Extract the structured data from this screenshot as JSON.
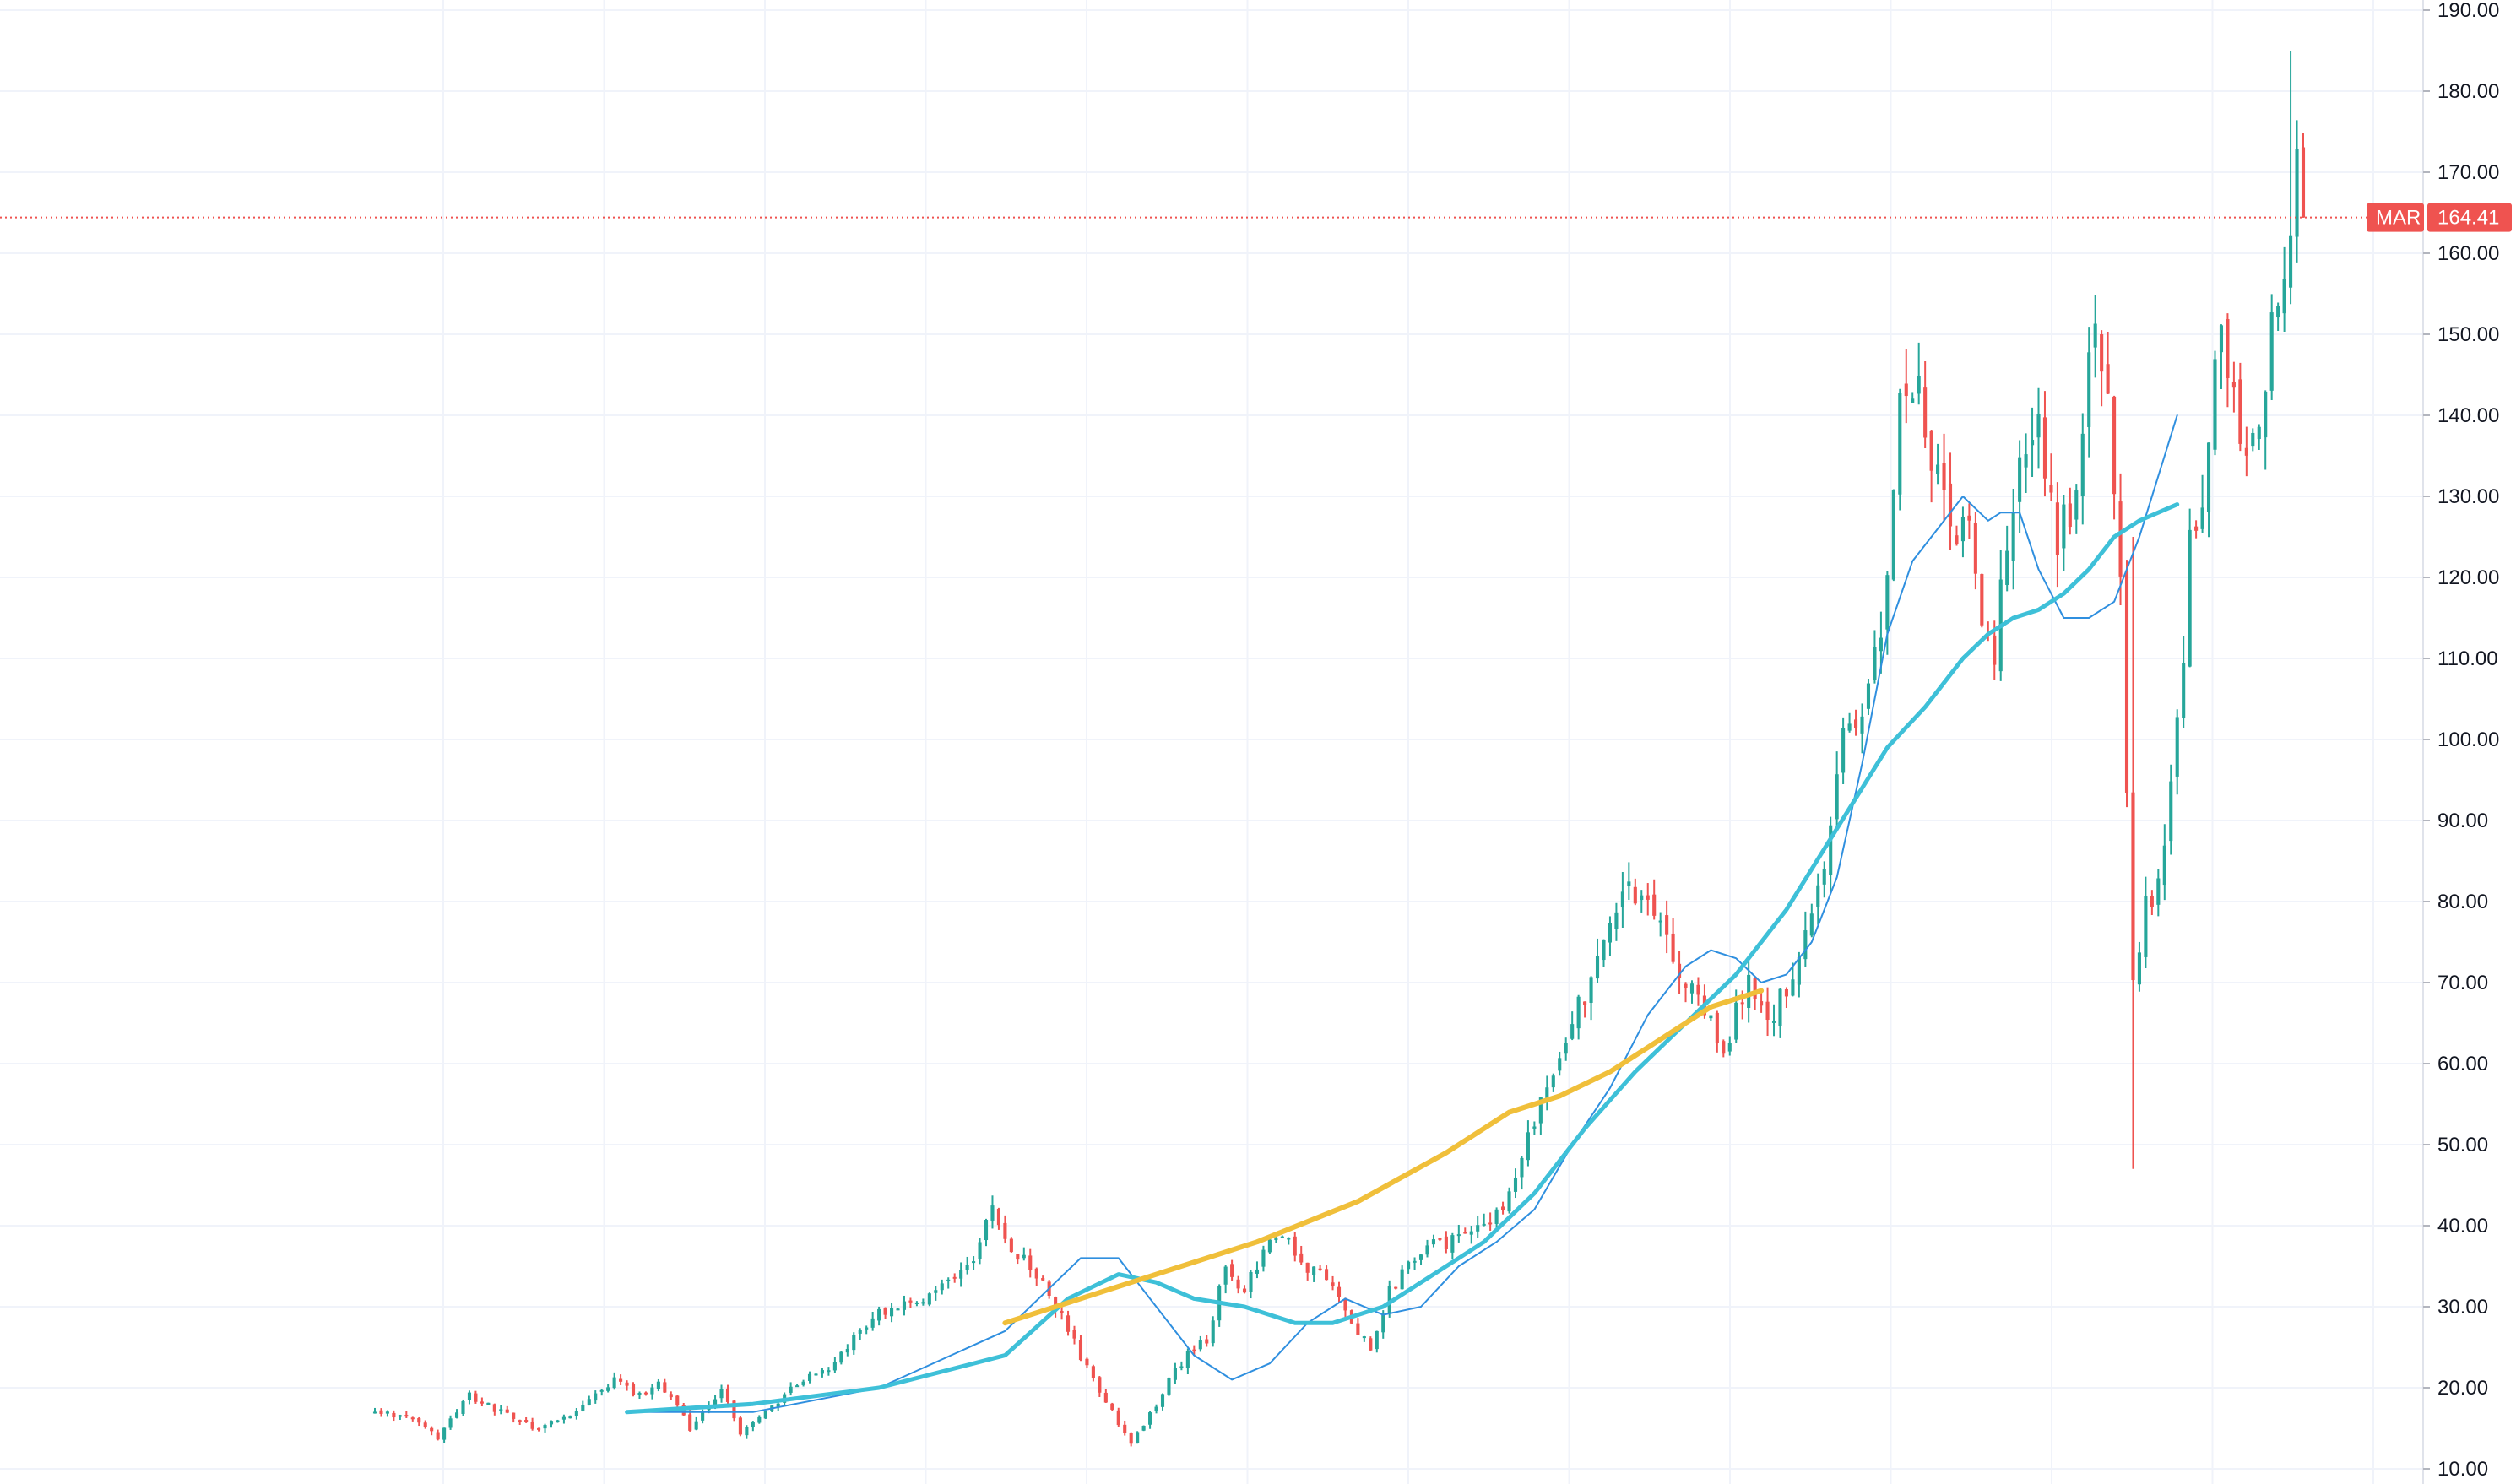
{
  "symbol_label": "MAR",
  "last_price_label": "164.41",
  "colors": {
    "up": "#26a69a",
    "down": "#ef5350",
    "ma_fast": "#2f8fdf",
    "ma_mid": "#3ec0d8",
    "ma_slow": "#f0bf3a",
    "grid": "#f0f3fa",
    "price_line": "#ef5350"
  },
  "chart_data": {
    "type": "candlestick",
    "title": "",
    "xlabel": "",
    "ylabel": "",
    "ylim": [
      10,
      190
    ],
    "y_tick_labels": [
      "10.00",
      "20.00",
      "30.00",
      "40.00",
      "50.00",
      "60.00",
      "70.00",
      "80.00",
      "90.00",
      "100.00",
      "110.00",
      "120.00",
      "130.00",
      "140.00",
      "150.00",
      "160.00",
      "170.00",
      "180.00",
      "190.00"
    ],
    "last_price": 164.41,
    "grid": true,
    "legend": "none",
    "candle_count": 250,
    "close_path": [
      [
        0,
        17
      ],
      [
        6,
        16
      ],
      [
        10,
        14
      ],
      [
        15,
        19
      ],
      [
        20,
        17
      ],
      [
        25,
        15
      ],
      [
        30,
        16
      ],
      [
        35,
        19
      ],
      [
        38,
        21
      ],
      [
        42,
        19
      ],
      [
        45,
        21
      ],
      [
        50,
        15
      ],
      [
        55,
        20
      ],
      [
        58,
        14
      ],
      [
        62,
        17
      ],
      [
        68,
        21
      ],
      [
        72,
        22
      ],
      [
        78,
        28
      ],
      [
        82,
        30
      ],
      [
        85,
        30
      ],
      [
        90,
        33
      ],
      [
        95,
        36
      ],
      [
        98,
        42
      ],
      [
        101,
        37
      ],
      [
        104,
        35
      ],
      [
        108,
        30
      ],
      [
        114,
        21
      ],
      [
        120,
        13
      ],
      [
        124,
        18
      ],
      [
        126,
        21
      ],
      [
        130,
        25
      ],
      [
        132,
        26
      ],
      [
        135,
        35
      ],
      [
        138,
        32
      ],
      [
        142,
        38
      ],
      [
        145,
        38
      ],
      [
        148,
        35
      ],
      [
        152,
        33
      ],
      [
        155,
        28
      ],
      [
        158,
        25
      ],
      [
        161,
        32
      ],
      [
        164,
        35
      ],
      [
        167,
        38
      ],
      [
        170,
        38
      ],
      [
        175,
        40
      ],
      [
        179,
        42
      ],
      [
        183,
        52
      ],
      [
        186,
        56
      ],
      [
        190,
        65
      ],
      [
        194,
        72
      ],
      [
        198,
        80
      ],
      [
        202,
        82
      ],
      [
        205,
        76
      ],
      [
        208,
        70
      ],
      [
        211,
        67
      ],
      [
        214,
        62
      ],
      [
        218,
        70
      ],
      [
        221,
        65
      ],
      [
        224,
        70
      ],
      [
        227,
        75
      ],
      [
        230,
        85
      ],
      [
        233,
        100
      ],
      [
        236,
        105
      ],
      [
        239,
        115
      ],
      [
        240,
        120
      ],
      [
        242,
        140
      ],
      [
        245,
        145
      ],
      [
        247,
        135
      ],
      [
        249,
        130
      ],
      [
        251,
        127
      ],
      [
        253,
        125
      ],
      [
        255,
        115
      ],
      [
        257,
        110
      ],
      [
        259,
        125
      ],
      [
        261,
        135
      ],
      [
        263,
        140
      ],
      [
        265,
        135
      ],
      [
        267,
        125
      ],
      [
        269,
        128
      ],
      [
        271,
        140
      ],
      [
        273,
        150
      ],
      [
        275,
        140
      ],
      [
        277,
        120
      ],
      [
        279,
        70
      ],
      [
        281,
        80
      ],
      [
        283,
        82
      ],
      [
        285,
        95
      ],
      [
        287,
        110
      ],
      [
        288,
        125
      ],
      [
        290,
        130
      ],
      [
        292,
        150
      ],
      [
        294,
        148
      ],
      [
        296,
        135
      ],
      [
        298,
        140
      ],
      [
        299,
        140
      ],
      [
        300,
        145
      ],
      [
        302,
        155
      ],
      [
        304,
        165
      ],
      [
        305,
        170
      ],
      [
        306,
        164.41
      ]
    ],
    "candle_extremes": [
      {
        "index": 279,
        "low": 47,
        "high": 125
      },
      {
        "index": 304,
        "low": 155,
        "high": 185
      }
    ],
    "series": [
      {
        "name": "",
        "kind": "ma_fast",
        "points": [
          [
            40,
            17
          ],
          [
            60,
            17
          ],
          [
            80,
            20
          ],
          [
            100,
            27
          ],
          [
            108,
            33
          ],
          [
            112,
            36
          ],
          [
            118,
            36
          ],
          [
            124,
            30
          ],
          [
            130,
            24
          ],
          [
            136,
            21
          ],
          [
            142,
            23
          ],
          [
            148,
            28
          ],
          [
            154,
            31
          ],
          [
            160,
            29
          ],
          [
            166,
            30
          ],
          [
            172,
            35
          ],
          [
            178,
            38
          ],
          [
            184,
            42
          ],
          [
            190,
            50
          ],
          [
            196,
            57
          ],
          [
            202,
            66
          ],
          [
            208,
            72
          ],
          [
            212,
            74
          ],
          [
            216,
            73
          ],
          [
            220,
            70
          ],
          [
            224,
            71
          ],
          [
            228,
            75
          ],
          [
            232,
            83
          ],
          [
            236,
            97
          ],
          [
            240,
            113
          ],
          [
            244,
            122
          ],
          [
            248,
            126
          ],
          [
            252,
            130
          ],
          [
            256,
            127
          ],
          [
            258,
            128
          ],
          [
            261,
            128
          ],
          [
            264,
            121
          ],
          [
            268,
            115
          ],
          [
            272,
            115
          ],
          [
            276,
            117
          ],
          [
            280,
            125
          ],
          [
            284,
            135
          ],
          [
            286,
            140
          ]
        ]
      },
      {
        "name": "",
        "kind": "ma_mid",
        "points": [
          [
            40,
            17
          ],
          [
            60,
            18
          ],
          [
            80,
            20
          ],
          [
            100,
            24
          ],
          [
            110,
            31
          ],
          [
            118,
            34
          ],
          [
            124,
            33
          ],
          [
            130,
            31
          ],
          [
            138,
            30
          ],
          [
            146,
            28
          ],
          [
            152,
            28
          ],
          [
            160,
            30
          ],
          [
            168,
            34
          ],
          [
            176,
            38
          ],
          [
            184,
            44
          ],
          [
            192,
            52
          ],
          [
            200,
            59
          ],
          [
            208,
            65
          ],
          [
            216,
            71
          ],
          [
            224,
            79
          ],
          [
            232,
            89
          ],
          [
            240,
            99
          ],
          [
            246,
            104
          ],
          [
            252,
            110
          ],
          [
            256,
            113
          ],
          [
            260,
            115
          ],
          [
            264,
            116
          ],
          [
            268,
            118
          ],
          [
            272,
            121
          ],
          [
            276,
            125
          ],
          [
            280,
            127
          ],
          [
            286,
            129
          ]
        ]
      },
      {
        "name": "",
        "kind": "ma_slow",
        "points": [
          [
            100,
            28
          ],
          [
            120,
            33
          ],
          [
            140,
            38
          ],
          [
            156,
            43
          ],
          [
            170,
            49
          ],
          [
            180,
            54
          ],
          [
            188,
            56
          ],
          [
            196,
            59
          ],
          [
            204,
            63
          ],
          [
            212,
            67
          ],
          [
            220,
            69
          ]
        ]
      }
    ]
  }
}
